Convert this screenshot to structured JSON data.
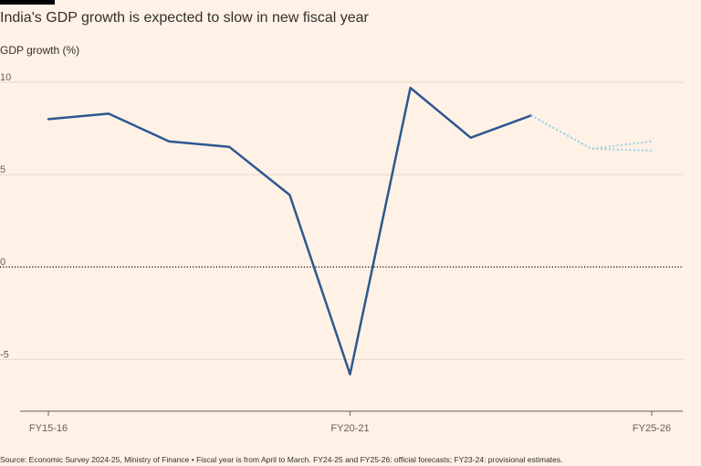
{
  "title": "India's GDP growth is expected to slow in new fiscal year",
  "subtitle": "GDP growth (%)",
  "source": "Source: Economic Survey 2024-25, Ministry of Finance • Fiscal year is from April to March. FY24-25 and FY25-26: official forecasts; FY23-24: provisional estimates.",
  "colors": {
    "background": "#fff1e5",
    "actual_line": "#2d5791",
    "forecast_line": "#9ad0e6",
    "gridline": "#e3d9cf",
    "zero_line": "#33302e"
  },
  "chart_data": {
    "type": "line",
    "title": "India's GDP growth is expected to slow in new fiscal year",
    "ylabel": "GDP growth (%)",
    "xlabel": "",
    "x": [
      "FY15-16",
      "FY16-17",
      "FY17-18",
      "FY18-19",
      "FY19-20",
      "FY20-21",
      "FY21-22",
      "FY22-23",
      "FY23-24",
      "FY24-25",
      "FY25-26"
    ],
    "x_ticks": [
      "FY15-16",
      "FY20-21",
      "FY25-26"
    ],
    "y_ticks": [
      10,
      5,
      0,
      -5
    ],
    "ylim": [
      -7.8,
      10
    ],
    "grid": true,
    "series": [
      {
        "style": "solid",
        "color": "#2d5791",
        "x": [
          "FY15-16",
          "FY16-17",
          "FY17-18",
          "FY18-19",
          "FY19-20",
          "FY20-21",
          "FY21-22",
          "FY22-23",
          "FY23-24"
        ],
        "values": [
          8.0,
          8.3,
          6.8,
          6.5,
          3.9,
          -5.8,
          9.7,
          7.0,
          8.2
        ]
      },
      {
        "style": "dotted",
        "color": "#9ad0e6",
        "x": [
          "FY23-24",
          "FY24-25",
          "FY25-26"
        ],
        "values": [
          8.2,
          6.4,
          6.8
        ]
      },
      {
        "style": "dotted",
        "color": "#9ad0e6",
        "x": [
          "FY23-24",
          "FY24-25",
          "FY25-26"
        ],
        "values": [
          8.2,
          6.4,
          6.3
        ]
      }
    ]
  }
}
